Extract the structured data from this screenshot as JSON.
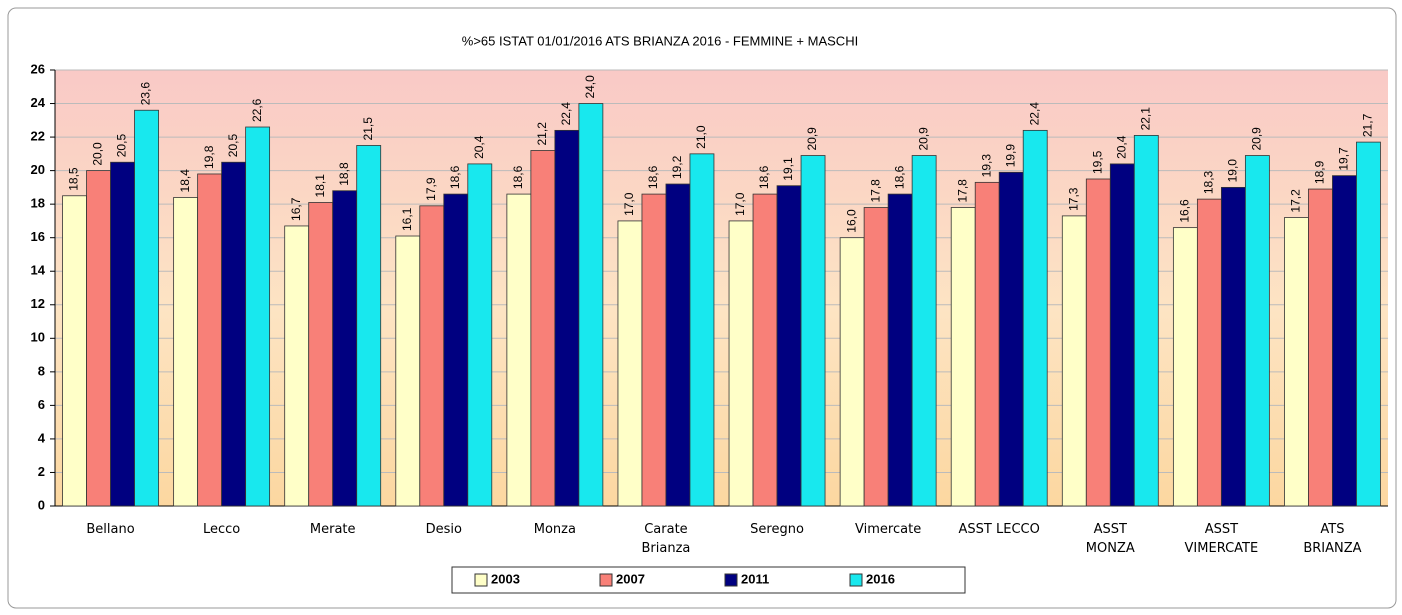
{
  "chart_data": {
    "type": "bar",
    "title": "%>65 ISTAT 01/01/2016  ATS BRIANZA 2016 - FEMMINE + MASCHI",
    "categories": [
      "Bellano",
      "Lecco",
      "Merate",
      "Desio",
      "Monza",
      "Carate\nBrianza",
      "Seregno",
      "Vimercate",
      "ASST LECCO",
      "ASST\nMONZA",
      "ASST\nVIMERCATE",
      "ATS\nBRIANZA"
    ],
    "series": [
      {
        "name": "2003",
        "color": "#ffffc8",
        "values": [
          18.5,
          18.4,
          16.7,
          16.1,
          18.6,
          17.0,
          17.0,
          16.0,
          17.8,
          17.3,
          16.6,
          17.2
        ],
        "value_labels": [
          "18,5",
          "18,4",
          "16,7",
          "16,1",
          "18,6",
          "17,0",
          "17,0",
          "16,0",
          "17,8",
          "17,3",
          "16,6",
          "17,2"
        ]
      },
      {
        "name": "2007",
        "color": "#f88078",
        "values": [
          20.0,
          19.8,
          18.1,
          17.9,
          21.2,
          18.6,
          18.6,
          17.8,
          19.3,
          19.5,
          18.3,
          18.9
        ],
        "value_labels": [
          "20,0",
          "19,8",
          "18,1",
          "17,9",
          "21,2",
          "18,6",
          "18,6",
          "17,8",
          "19,3",
          "19,5",
          "18,3",
          "18,9"
        ]
      },
      {
        "name": "2011",
        "color": "#000080",
        "values": [
          20.5,
          20.5,
          18.8,
          18.6,
          22.4,
          19.2,
          19.1,
          18.6,
          19.9,
          20.4,
          19.0,
          19.7
        ],
        "value_labels": [
          "20,5",
          "20,5",
          "18,8",
          "18,6",
          "22,4",
          "19,2",
          "19,1",
          "18,6",
          "19,9",
          "20,4",
          "19,0",
          "19,7"
        ]
      },
      {
        "name": "2016",
        "color": "#18e8ee",
        "values": [
          23.6,
          22.6,
          21.5,
          20.4,
          24.0,
          21.0,
          20.9,
          20.9,
          22.4,
          22.1,
          20.9,
          21.7
        ],
        "value_labels": [
          "23,6",
          "22,6",
          "21,5",
          "20,4",
          "24,0",
          "21,0",
          "20,9",
          "20,9",
          "22,4",
          "22,1",
          "20,9",
          "21,7"
        ]
      }
    ],
    "ylim": [
      0,
      26
    ],
    "yticks": [
      0,
      2,
      4,
      6,
      8,
      10,
      12,
      14,
      16,
      18,
      20,
      22,
      24,
      26
    ],
    "grid": true,
    "legend": "bottom"
  }
}
